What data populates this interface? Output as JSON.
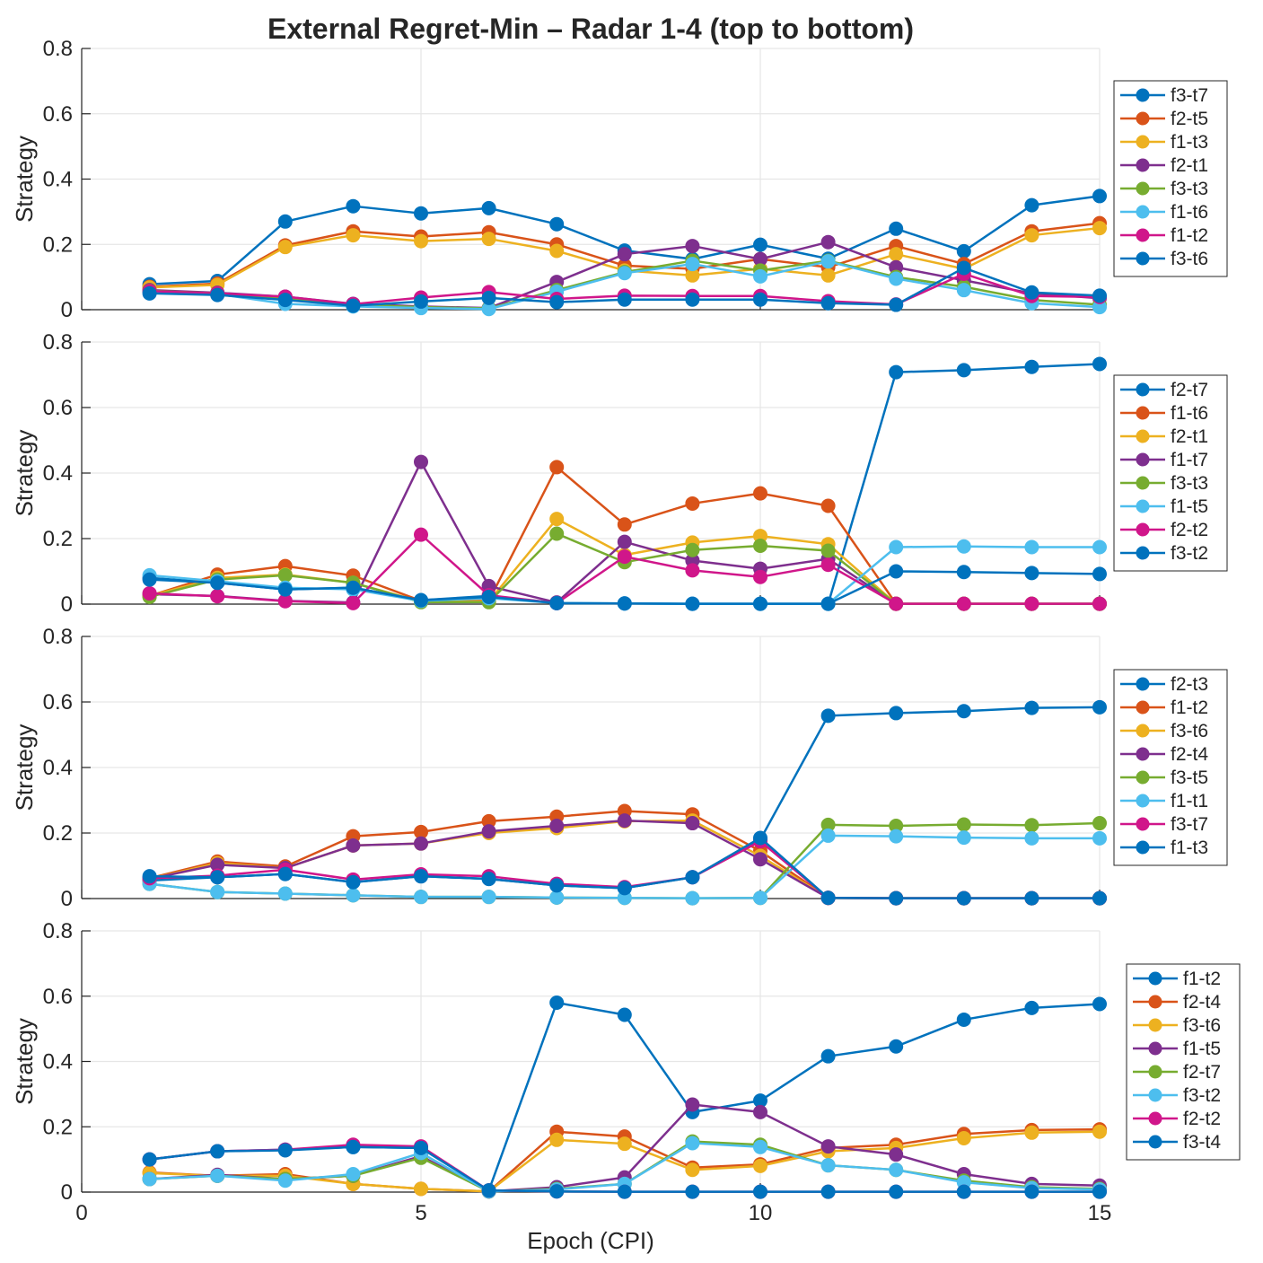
{
  "figure": {
    "title": "External Regret-Min – Radar 1-4 (top to bottom)"
  },
  "chart_data": [
    {
      "type": "line",
      "title": "External Regret-Min – Radar 1-4 (top to bottom)",
      "xlabel": "",
      "ylabel": "Strategy",
      "xlim": [
        0,
        15
      ],
      "ylim": [
        0,
        0.8
      ],
      "grid": true,
      "legend_position": "right",
      "x_ticks": [
        "0",
        "5",
        "10",
        "15"
      ],
      "y_ticks": [
        "0",
        "0.2",
        "0.4",
        "0.6",
        "0.8"
      ],
      "x": [
        1,
        2,
        3,
        4,
        5,
        6,
        7,
        8,
        9,
        10,
        11,
        12,
        13,
        14,
        15
      ],
      "series": [
        {
          "name": "f3-t7",
          "color": "#0072BD",
          "values": [
            0.078,
            0.088,
            0.27,
            0.317,
            0.295,
            0.311,
            0.262,
            0.181,
            0.155,
            0.199,
            0.156,
            0.248,
            0.179,
            0.32,
            0.348
          ]
        },
        {
          "name": "f2-t5",
          "color": "#D95319",
          "values": [
            0.07,
            0.08,
            0.197,
            0.24,
            0.224,
            0.237,
            0.2,
            0.135,
            0.125,
            0.155,
            0.13,
            0.195,
            0.14,
            0.24,
            0.265
          ]
        },
        {
          "name": "f1-t3",
          "color": "#EDB120",
          "values": [
            0.068,
            0.076,
            0.192,
            0.228,
            0.21,
            0.217,
            0.18,
            0.12,
            0.105,
            0.125,
            0.105,
            0.17,
            0.125,
            0.228,
            0.25
          ]
        },
        {
          "name": "f2-t1",
          "color": "#7E2F8E",
          "values": [
            0.06,
            0.052,
            0.04,
            0.018,
            0.01,
            0.005,
            0.085,
            0.17,
            0.195,
            0.155,
            0.207,
            0.13,
            0.09,
            0.05,
            0.035
          ]
        },
        {
          "name": "f3-t3",
          "color": "#77AC30",
          "values": [
            0.058,
            0.05,
            0.035,
            0.015,
            0.008,
            0.004,
            0.06,
            0.115,
            0.15,
            0.12,
            0.15,
            0.1,
            0.07,
            0.03,
            0.015
          ]
        },
        {
          "name": "f1-t6",
          "color": "#4DBEEE",
          "values": [
            0.055,
            0.048,
            0.018,
            0.01,
            0.005,
            0.002,
            0.055,
            0.112,
            0.14,
            0.102,
            0.148,
            0.095,
            0.06,
            0.02,
            0.008
          ]
        },
        {
          "name": "f1-t2",
          "color": "#D0168A",
          "values": [
            0.057,
            0.05,
            0.04,
            0.017,
            0.037,
            0.054,
            0.033,
            0.043,
            0.042,
            0.042,
            0.026,
            0.016,
            0.11,
            0.042,
            0.039
          ]
        },
        {
          "name": "f3-t6",
          "color": "#0072BD",
          "values": [
            0.05,
            0.045,
            0.03,
            0.012,
            0.025,
            0.036,
            0.023,
            0.031,
            0.031,
            0.031,
            0.02,
            0.015,
            0.128,
            0.053,
            0.043
          ]
        }
      ]
    },
    {
      "type": "line",
      "title": "",
      "xlabel": "",
      "ylabel": "Strategy",
      "xlim": [
        0,
        15
      ],
      "ylim": [
        0,
        0.8
      ],
      "grid": true,
      "legend_position": "right",
      "x_ticks": [
        "0",
        "5",
        "10",
        "15"
      ],
      "y_ticks": [
        "0",
        "0.2",
        "0.4",
        "0.6",
        "0.8"
      ],
      "x": [
        1,
        2,
        3,
        4,
        5,
        6,
        7,
        8,
        9,
        10,
        11,
        12,
        13,
        14,
        15
      ],
      "series": [
        {
          "name": "f2-t7",
          "color": "#0072BD",
          "values": [
            0.08,
            0.065,
            0.045,
            0.05,
            0.012,
            0.025,
            0.003,
            0.002,
            0.001,
            0.001,
            0.001,
            0.708,
            0.714,
            0.724,
            0.733
          ]
        },
        {
          "name": "f1-t6",
          "color": "#D95319",
          "values": [
            0.025,
            0.09,
            0.116,
            0.087,
            0.01,
            0.01,
            0.418,
            0.243,
            0.307,
            0.338,
            0.3,
            0.001,
            0.001,
            0.001,
            0.001
          ]
        },
        {
          "name": "f2-t1",
          "color": "#EDB120",
          "values": [
            0.025,
            0.08,
            0.09,
            0.065,
            0.008,
            0.008,
            0.26,
            0.15,
            0.188,
            0.208,
            0.183,
            0.001,
            0.001,
            0.001,
            0.001
          ]
        },
        {
          "name": "f1-t7",
          "color": "#7E2F8E",
          "values": [
            0.03,
            0.025,
            0.01,
            0.005,
            0.434,
            0.055,
            0.005,
            0.19,
            0.133,
            0.108,
            0.138,
            0.001,
            0.001,
            0.001,
            0.001
          ]
        },
        {
          "name": "f3-t3",
          "color": "#77AC30",
          "values": [
            0.022,
            0.075,
            0.088,
            0.065,
            0.006,
            0.006,
            0.215,
            0.128,
            0.165,
            0.178,
            0.163,
            0.001,
            0.001,
            0.001,
            0.001
          ]
        },
        {
          "name": "f1-t5",
          "color": "#4DBEEE",
          "values": [
            0.088,
            0.07,
            0.05,
            0.045,
            0.01,
            0.018,
            0.003,
            0.002,
            0.001,
            0.001,
            0.001,
            0.174,
            0.176,
            0.174,
            0.174
          ]
        },
        {
          "name": "f2-t2",
          "color": "#D0168A",
          "values": [
            0.033,
            0.024,
            0.009,
            0.003,
            0.212,
            0.027,
            0.003,
            0.145,
            0.103,
            0.083,
            0.12,
            0.001,
            0.001,
            0.001,
            0.001
          ]
        },
        {
          "name": "f3-t2",
          "color": "#0072BD",
          "values": [
            0.075,
            0.065,
            0.045,
            0.05,
            0.012,
            0.022,
            0.003,
            0.002,
            0.001,
            0.001,
            0.001,
            0.1,
            0.098,
            0.095,
            0.092
          ]
        }
      ]
    },
    {
      "type": "line",
      "title": "",
      "xlabel": "",
      "ylabel": "Strategy",
      "xlim": [
        0,
        15
      ],
      "ylim": [
        0,
        0.8
      ],
      "grid": true,
      "legend_position": "right",
      "x_ticks": [
        "0",
        "5",
        "10",
        "15"
      ],
      "y_ticks": [
        "0",
        "0.2",
        "0.4",
        "0.6",
        "0.8"
      ],
      "x": [
        1,
        2,
        3,
        4,
        5,
        6,
        7,
        8,
        9,
        10,
        11,
        12,
        13,
        14,
        15
      ],
      "series": [
        {
          "name": "f2-t3",
          "color": "#0072BD",
          "values": [
            0.055,
            0.065,
            0.075,
            0.05,
            0.068,
            0.06,
            0.04,
            0.032,
            0.065,
            0.18,
            0.558,
            0.566,
            0.572,
            0.582,
            0.584
          ]
        },
        {
          "name": "f1-t2",
          "color": "#D95319",
          "values": [
            0.062,
            0.113,
            0.098,
            0.19,
            0.203,
            0.236,
            0.25,
            0.267,
            0.257,
            0.145,
            0.002,
            0.001,
            0.001,
            0.001,
            0.001
          ]
        },
        {
          "name": "f3-t6",
          "color": "#EDB120",
          "values": [
            0.06,
            0.108,
            0.093,
            0.162,
            0.168,
            0.2,
            0.215,
            0.236,
            0.238,
            0.13,
            0.002,
            0.001,
            0.001,
            0.001,
            0.001
          ]
        },
        {
          "name": "f2-t4",
          "color": "#7E2F8E",
          "values": [
            0.06,
            0.103,
            0.093,
            0.162,
            0.168,
            0.205,
            0.222,
            0.238,
            0.23,
            0.12,
            0.002,
            0.001,
            0.001,
            0.001,
            0.001
          ]
        },
        {
          "name": "f3-t5",
          "color": "#77AC30",
          "values": [
            0.045,
            0.02,
            0.015,
            0.01,
            0.005,
            0.005,
            0.003,
            0.002,
            0.001,
            0.002,
            0.225,
            0.222,
            0.226,
            0.224,
            0.23
          ]
        },
        {
          "name": "f1-t1",
          "color": "#4DBEEE",
          "values": [
            0.045,
            0.02,
            0.015,
            0.01,
            0.005,
            0.005,
            0.003,
            0.002,
            0.001,
            0.002,
            0.192,
            0.19,
            0.186,
            0.184,
            0.184
          ]
        },
        {
          "name": "f3-t7",
          "color": "#D0168A",
          "values": [
            0.062,
            0.07,
            0.088,
            0.058,
            0.074,
            0.068,
            0.045,
            0.035,
            0.065,
            0.175,
            0.002,
            0.001,
            0.001,
            0.001,
            0.001
          ]
        },
        {
          "name": "f1-t3",
          "color": "#0072BD",
          "values": [
            0.068,
            0.065,
            0.075,
            0.05,
            0.068,
            0.06,
            0.04,
            0.032,
            0.065,
            0.185,
            0.002,
            0.001,
            0.001,
            0.001,
            0.001
          ]
        }
      ]
    },
    {
      "type": "line",
      "title": "",
      "xlabel": "Epoch (CPI)",
      "ylabel": "Strategy",
      "xlim": [
        0,
        15
      ],
      "ylim": [
        0,
        0.8
      ],
      "grid": true,
      "legend_position": "right",
      "x_ticks": [
        "0",
        "5",
        "10",
        "15"
      ],
      "y_ticks": [
        "0",
        "0.2",
        "0.4",
        "0.6",
        "0.8"
      ],
      "x": [
        1,
        2,
        3,
        4,
        5,
        6,
        7,
        8,
        9,
        10,
        11,
        12,
        13,
        14,
        15
      ],
      "series": [
        {
          "name": "f1-t2",
          "color": "#0072BD",
          "values": [
            0.1,
            0.125,
            0.13,
            0.138,
            0.135,
            0.005,
            0.58,
            0.543,
            0.245,
            0.28,
            0.416,
            0.446,
            0.528,
            0.564,
            0.576
          ]
        },
        {
          "name": "f2-t4",
          "color": "#D95319",
          "values": [
            0.06,
            0.05,
            0.055,
            0.025,
            0.01,
            0.002,
            0.185,
            0.17,
            0.075,
            0.085,
            0.135,
            0.145,
            0.178,
            0.19,
            0.192
          ]
        },
        {
          "name": "f3-t6",
          "color": "#EDB120",
          "values": [
            0.058,
            0.05,
            0.05,
            0.025,
            0.01,
            0.002,
            0.16,
            0.148,
            0.068,
            0.08,
            0.125,
            0.135,
            0.165,
            0.182,
            0.185
          ]
        },
        {
          "name": "f1-t5",
          "color": "#7E2F8E",
          "values": [
            0.04,
            0.053,
            0.04,
            0.05,
            0.11,
            0.002,
            0.015,
            0.045,
            0.268,
            0.245,
            0.14,
            0.115,
            0.055,
            0.025,
            0.02
          ]
        },
        {
          "name": "f2-t7",
          "color": "#77AC30",
          "values": [
            0.04,
            0.05,
            0.04,
            0.05,
            0.105,
            0.002,
            0.01,
            0.025,
            0.155,
            0.145,
            0.082,
            0.068,
            0.035,
            0.015,
            0.01
          ]
        },
        {
          "name": "f3-t2",
          "color": "#4DBEEE",
          "values": [
            0.04,
            0.05,
            0.035,
            0.055,
            0.12,
            0.002,
            0.008,
            0.025,
            0.15,
            0.138,
            0.082,
            0.068,
            0.03,
            0.012,
            0.008
          ]
        },
        {
          "name": "f2-t2",
          "color": "#D0168A",
          "values": [
            0.1,
            0.125,
            0.13,
            0.145,
            0.14,
            0.005,
            0.002,
            0.001,
            0.001,
            0.001,
            0.001,
            0.001,
            0.001,
            0.001,
            0.001
          ]
        },
        {
          "name": "f3-t4",
          "color": "#0072BD",
          "values": [
            0.1,
            0.125,
            0.128,
            0.138,
            0.135,
            0.005,
            0.002,
            0.001,
            0.001,
            0.001,
            0.001,
            0.001,
            0.001,
            0.001,
            0.001
          ]
        }
      ]
    }
  ]
}
